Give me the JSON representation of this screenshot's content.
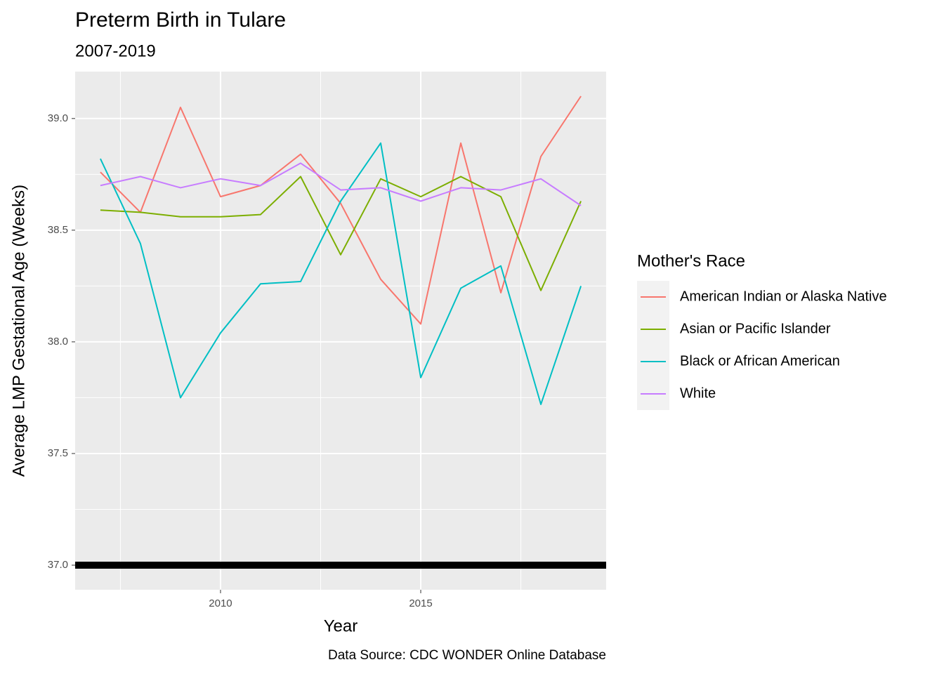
{
  "chart_data": {
    "type": "line",
    "title": "Preterm Birth in Tulare",
    "subtitle": "2007-2019",
    "x_label": "Year",
    "y_label": "Average LMP Gestational Age (Weeks)",
    "caption": "Data Source: CDC WONDER Online Database",
    "legend_title": "Mother's Race",
    "legend_position": "right",
    "grid": true,
    "x": [
      2007,
      2008,
      2009,
      2010,
      2011,
      2012,
      2013,
      2014,
      2015,
      2016,
      2017,
      2018,
      2019
    ],
    "series": [
      {
        "name": "American Indian or Alaska Native",
        "color": "#F8766D",
        "values": [
          38.76,
          38.58,
          39.05,
          38.65,
          38.7,
          38.84,
          38.62,
          38.28,
          38.08,
          38.89,
          38.22,
          38.83,
          39.1
        ]
      },
      {
        "name": "Asian or Pacific Islander",
        "color": "#7CAE00",
        "values": [
          38.59,
          38.58,
          38.56,
          38.56,
          38.57,
          38.74,
          38.39,
          38.73,
          38.65,
          38.74,
          38.65,
          38.23,
          38.63
        ]
      },
      {
        "name": "Black or African American",
        "color": "#00BFC4",
        "values": [
          38.82,
          38.44,
          37.75,
          38.04,
          38.26,
          38.27,
          38.63,
          38.89,
          37.84,
          38.24,
          38.34,
          37.72,
          38.25
        ]
      },
      {
        "name": "White",
        "color": "#C77CFF",
        "values": [
          38.7,
          38.74,
          38.69,
          38.73,
          38.7,
          38.8,
          38.68,
          38.69,
          38.63,
          38.69,
          38.68,
          38.73,
          38.61
        ]
      }
    ],
    "reference_line": {
      "value": 37,
      "color": "#000000"
    },
    "xlim": [
      2006.37,
      2019.63
    ],
    "ylim": [
      36.89,
      39.21
    ],
    "xticks": [
      2010,
      2015
    ],
    "yticks": [
      {
        "value": 37,
        "label": "37.0"
      },
      {
        "value": 37.5,
        "label": "37.5"
      },
      {
        "value": 38,
        "label": "38.0"
      },
      {
        "value": 38.5,
        "label": "38.5"
      },
      {
        "value": 39,
        "label": "39.0"
      }
    ],
    "xminor": [
      2007.5,
      2012.5,
      2017.5
    ],
    "yminor": [
      37.25,
      37.75,
      38.25,
      38.75
    ]
  }
}
